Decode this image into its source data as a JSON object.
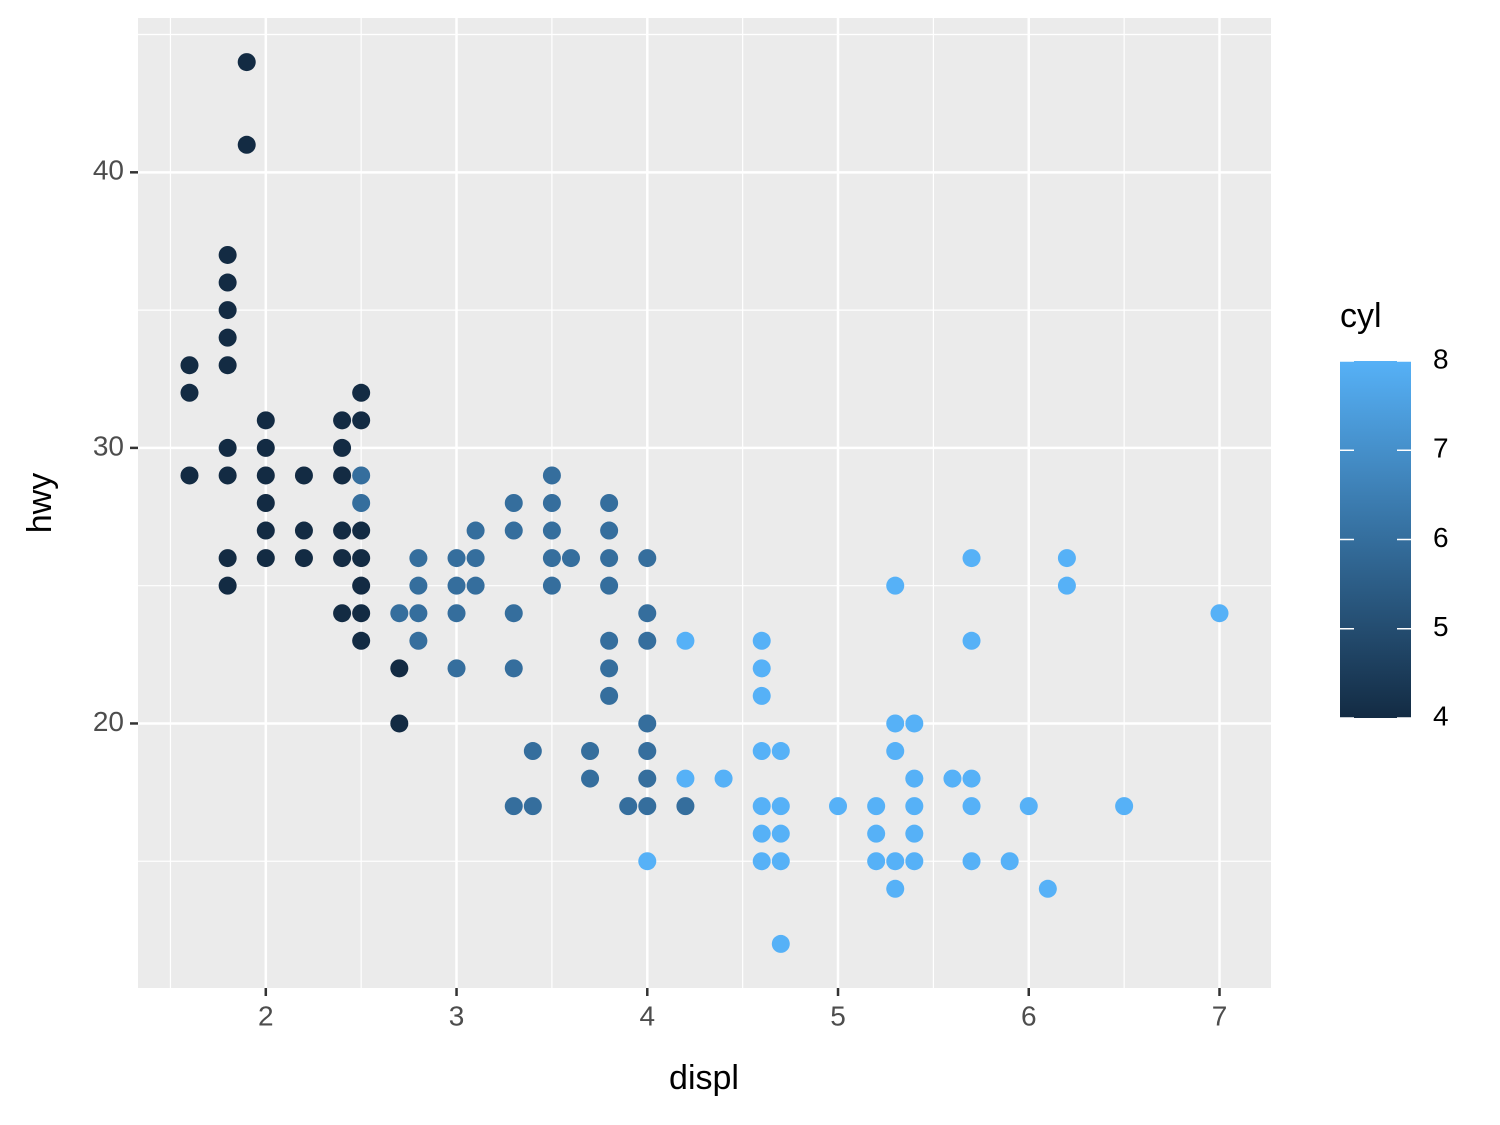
{
  "chart_data": {
    "type": "scatter",
    "x_label": "displ",
    "y_label": "hwy",
    "legend_title": "cyl",
    "x": [
      1.6,
      1.6,
      1.6,
      1.8,
      1.8,
      1.8,
      1.8,
      1.8,
      1.8,
      1.8,
      1.8,
      1.8,
      1.9,
      1.9,
      2,
      2,
      2,
      2,
      2,
      2,
      2.2,
      2.2,
      2.2,
      2.4,
      2.4,
      2.4,
      2.4,
      2.4,
      2.4,
      2.5,
      2.5,
      2.5,
      2.5,
      2.5,
      2.5,
      2.5,
      2.5,
      2.5,
      2.7,
      2.7,
      2.7,
      2.8,
      2.8,
      2.8,
      2.8,
      3,
      3,
      3,
      3,
      3.1,
      3.1,
      3.1,
      3.3,
      3.3,
      3.3,
      3.3,
      3.3,
      3.4,
      3.4,
      3.5,
      3.5,
      3.5,
      3.5,
      3.5,
      3.6,
      3.7,
      3.7,
      3.8,
      3.8,
      3.8,
      3.8,
      3.8,
      3.8,
      3.8,
      3.9,
      4,
      4,
      4,
      4,
      4,
      4,
      4,
      4,
      4.2,
      4.2,
      4.2,
      4.4,
      4.6,
      4.6,
      4.6,
      4.6,
      4.6,
      4.6,
      4.6,
      4.7,
      4.7,
      4.7,
      4.7,
      4.7,
      5,
      5.2,
      5.2,
      5.2,
      5.3,
      5.3,
      5.3,
      5.3,
      5.3,
      5.4,
      5.4,
      5.4,
      5.4,
      5.4,
      5.6,
      5.7,
      5.7,
      5.7,
      5.7,
      5.7,
      5.9,
      6,
      6.1,
      6.2,
      6.2,
      6.5,
      7
    ],
    "y": [
      33,
      32,
      29,
      37,
      36,
      35,
      34,
      33,
      30,
      29,
      26,
      25,
      44,
      41,
      31,
      30,
      29,
      28,
      27,
      26,
      29,
      27,
      26,
      31,
      30,
      29,
      27,
      26,
      24,
      32,
      31,
      27,
      26,
      25,
      24,
      23,
      29,
      28,
      22,
      20,
      24,
      26,
      25,
      24,
      23,
      26,
      25,
      24,
      22,
      27,
      26,
      25,
      28,
      27,
      24,
      22,
      17,
      19,
      17,
      29,
      28,
      27,
      26,
      25,
      26,
      19,
      18,
      28,
      27,
      26,
      25,
      23,
      22,
      21,
      17,
      26,
      24,
      23,
      20,
      19,
      18,
      17,
      15,
      17,
      23,
      18,
      18,
      23,
      22,
      21,
      19,
      17,
      16,
      15,
      19,
      17,
      16,
      15,
      12,
      17,
      17,
      16,
      15,
      25,
      20,
      19,
      15,
      14,
      20,
      18,
      17,
      16,
      15,
      18,
      26,
      23,
      18,
      17,
      15,
      15,
      17,
      14,
      26,
      25,
      17,
      24
    ],
    "cyl": [
      4,
      4,
      4,
      4,
      4,
      4,
      4,
      4,
      4,
      4,
      4,
      4,
      4,
      4,
      4,
      4,
      4,
      4,
      4,
      4,
      4,
      4,
      4,
      4,
      4,
      4,
      4,
      4,
      4,
      4,
      4,
      4,
      4,
      4,
      4,
      4,
      6,
      6,
      4,
      4,
      6,
      6,
      6,
      6,
      6,
      6,
      6,
      6,
      6,
      6,
      6,
      6,
      6,
      6,
      6,
      6,
      6,
      6,
      6,
      6,
      6,
      6,
      6,
      6,
      6,
      6,
      6,
      6,
      6,
      6,
      6,
      6,
      6,
      6,
      6,
      6,
      6,
      6,
      6,
      6,
      6,
      6,
      8,
      6,
      8,
      8,
      8,
      8,
      8,
      8,
      8,
      8,
      8,
      8,
      8,
      8,
      8,
      8,
      8,
      8,
      8,
      8,
      8,
      8,
      8,
      8,
      8,
      8,
      8,
      8,
      8,
      8,
      8,
      8,
      8,
      8,
      8,
      8,
      8,
      8,
      8,
      8,
      8,
      8,
      8,
      8
    ],
    "xlim": [
      1.33,
      7.27
    ],
    "ylim": [
      10.4,
      45.6
    ],
    "xticks": [
      2,
      3,
      4,
      5,
      6,
      7
    ],
    "yticks": [
      20,
      30,
      40
    ],
    "x_minor_grid": [
      1.5,
      2.5,
      3.5,
      4.5,
      5.5,
      6.5
    ],
    "y_minor_grid": [
      15,
      25,
      35,
      45
    ],
    "color_low": "#132B43",
    "color_high": "#56B1F7",
    "color_lim": [
      4,
      8
    ],
    "color_ticks": [
      4,
      5,
      6,
      7,
      8
    ],
    "grid": true
  }
}
